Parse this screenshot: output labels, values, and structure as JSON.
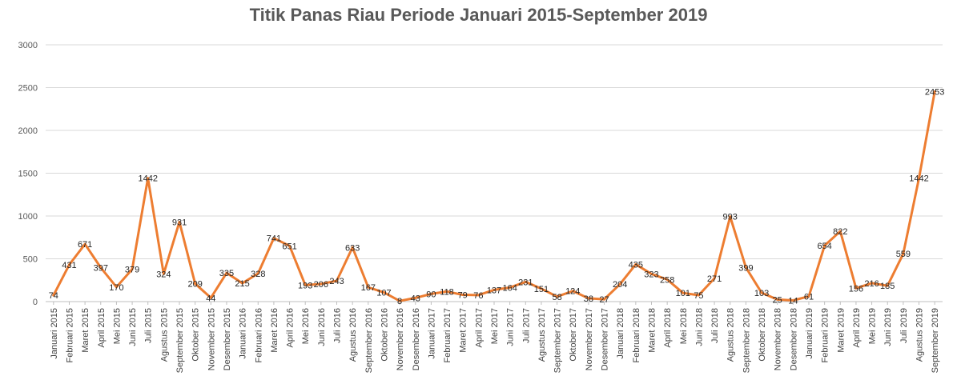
{
  "chart_data": {
    "type": "line",
    "title": "Titik Panas Riau Periode Januari 2015-September 2019",
    "xlabel": "",
    "ylabel": "",
    "ylim": [
      0,
      3000
    ],
    "yticks": [
      "0",
      "500",
      "1000",
      "1500",
      "2000",
      "2500",
      "3000"
    ],
    "grid": true,
    "legend": "none",
    "line_color": "#ED7D31",
    "categories": [
      "Januari 2015",
      "Februari 2015",
      "Maret 2015",
      "April 2015",
      "Mei 2015",
      "Juni 2015",
      "Juli 2015",
      "Agustus 2015",
      "September 2015",
      "Oktober 2015",
      "November 2015",
      "Desember 2015",
      "Januari 2016",
      "Februari 2016",
      "Maret 2016",
      "April 2016",
      "Mei 2016",
      "Juni 2016",
      "Juli 2016",
      "Agustus 2016",
      "September 2016",
      "Oktober 2016",
      "November 2016",
      "Desember 2016",
      "Januari 2017",
      "Februari 2017",
      "Maret 2017",
      "April 2017",
      "Mei 2017",
      "Juni 2017",
      "Juli 2017",
      "Agustus 2017",
      "September 2017",
      "Oktober 2017",
      "November 2017",
      "Desember 2017",
      "Januari 2018",
      "Februari 2018",
      "Maret 2018",
      "April 2018",
      "Mei 2018",
      "Juni 2018",
      "Juli 2018",
      "Agustus 2018",
      "September 2018",
      "Oktober 2018",
      "November 2018",
      "Desember 2018",
      "Januari 2019",
      "Februari 2019",
      "Maret 2019",
      "April 2019",
      "Mei 2019",
      "Juni 2019",
      "Juli 2019",
      "Agustus 2019",
      "September 2019"
    ],
    "values": [
      74,
      431,
      671,
      397,
      170,
      379,
      1442,
      324,
      931,
      209,
      44,
      335,
      215,
      328,
      741,
      651,
      193,
      206,
      243,
      633,
      167,
      107,
      8,
      43,
      90,
      118,
      79,
      76,
      137,
      164,
      231,
      151,
      58,
      124,
      38,
      27,
      204,
      435,
      323,
      258,
      101,
      75,
      271,
      993,
      399,
      103,
      25,
      14,
      61,
      654,
      822,
      156,
      216,
      185,
      559,
      1442,
      2453
    ]
  }
}
